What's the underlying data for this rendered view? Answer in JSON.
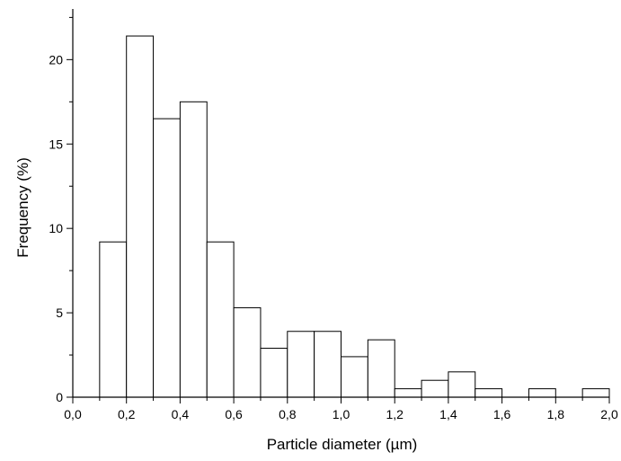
{
  "chart_data": {
    "type": "bar",
    "subtype": "histogram",
    "title": "",
    "xlabel": "Particle diameter (µm)",
    "ylabel": "Frequency (%)",
    "xlim": [
      0.0,
      2.0
    ],
    "ylim": [
      0,
      23
    ],
    "x_ticks": [
      0.0,
      0.2,
      0.4,
      0.6,
      0.8,
      1.0,
      1.2,
      1.4,
      1.6,
      1.8,
      2.0
    ],
    "x_tick_labels": [
      "0,0",
      "0,2",
      "0,4",
      "0,6",
      "0,8",
      "1,0",
      "1,2",
      "1,4",
      "1,6",
      "1,8",
      "2,0"
    ],
    "y_ticks": [
      0,
      5,
      10,
      15,
      20
    ],
    "y_tick_labels": [
      "0",
      "5",
      "10",
      "15",
      "20"
    ],
    "bin_width": 0.1,
    "bins": [
      {
        "start": 0.1,
        "end": 0.2,
        "value": 9.2
      },
      {
        "start": 0.2,
        "end": 0.3,
        "value": 21.4
      },
      {
        "start": 0.3,
        "end": 0.4,
        "value": 16.5
      },
      {
        "start": 0.4,
        "end": 0.5,
        "value": 17.5
      },
      {
        "start": 0.5,
        "end": 0.6,
        "value": 9.2
      },
      {
        "start": 0.6,
        "end": 0.7,
        "value": 5.3
      },
      {
        "start": 0.7,
        "end": 0.8,
        "value": 2.9
      },
      {
        "start": 0.8,
        "end": 0.9,
        "value": 3.9
      },
      {
        "start": 0.9,
        "end": 1.0,
        "value": 3.9
      },
      {
        "start": 1.0,
        "end": 1.1,
        "value": 2.4
      },
      {
        "start": 1.1,
        "end": 1.2,
        "value": 3.4
      },
      {
        "start": 1.2,
        "end": 1.3,
        "value": 0.5
      },
      {
        "start": 1.3,
        "end": 1.4,
        "value": 1.0
      },
      {
        "start": 1.4,
        "end": 1.5,
        "value": 1.5
      },
      {
        "start": 1.5,
        "end": 1.6,
        "value": 0.5
      },
      {
        "start": 1.6,
        "end": 1.7,
        "value": 0.0
      },
      {
        "start": 1.7,
        "end": 1.8,
        "value": 0.5
      },
      {
        "start": 1.8,
        "end": 1.9,
        "value": 0.0
      },
      {
        "start": 1.9,
        "end": 2.0,
        "value": 0.5
      }
    ],
    "grid": false,
    "legend": "none",
    "bar_fill": "#ffffff",
    "bar_stroke": "#000000"
  }
}
